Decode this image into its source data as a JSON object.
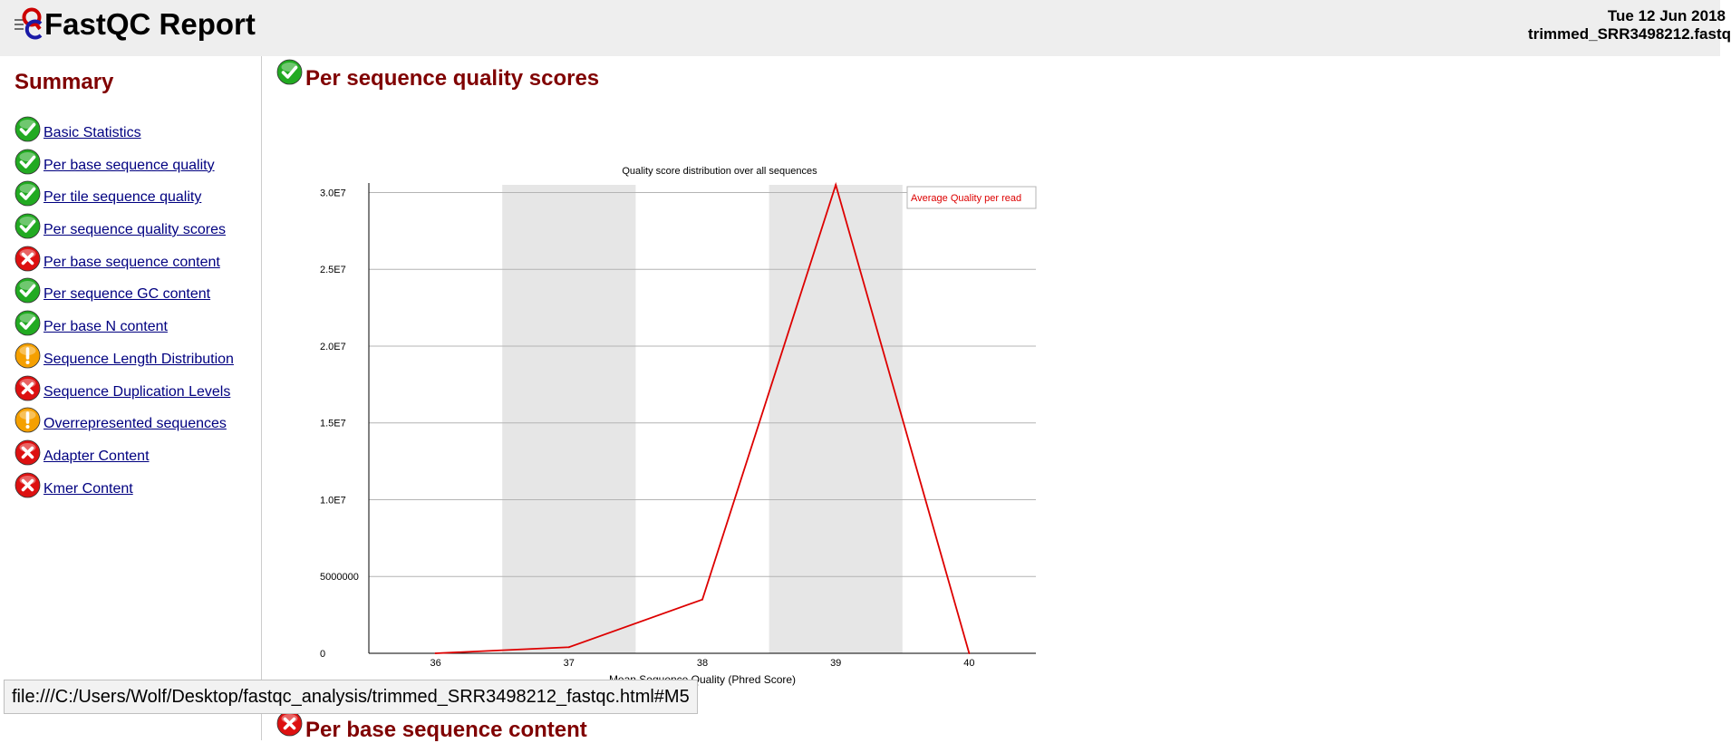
{
  "header": {
    "app_title": "FastQC Report",
    "date": "Tue 12 Jun 2018",
    "filename": "trimmed_SRR3498212.fastq"
  },
  "sidebar": {
    "title": "Summary",
    "items": [
      {
        "label": "Basic Statistics",
        "status": "pass"
      },
      {
        "label": "Per base sequence quality",
        "status": "pass"
      },
      {
        "label": "Per tile sequence quality",
        "status": "pass"
      },
      {
        "label": "Per sequence quality scores",
        "status": "pass"
      },
      {
        "label": "Per base sequence content",
        "status": "fail"
      },
      {
        "label": "Per sequence GC content",
        "status": "pass"
      },
      {
        "label": "Per base N content",
        "status": "pass"
      },
      {
        "label": "Sequence Length Distribution",
        "status": "warn"
      },
      {
        "label": "Sequence Duplication Levels",
        "status": "fail"
      },
      {
        "label": "Overrepresented sequences",
        "status": "warn"
      },
      {
        "label": "Adapter Content",
        "status": "fail"
      },
      {
        "label": "Kmer Content",
        "status": "fail"
      }
    ]
  },
  "main": {
    "section1": {
      "title": "Per sequence quality scores",
      "status": "pass"
    },
    "section2": {
      "title": "Per base sequence content",
      "status": "fail"
    }
  },
  "statusbar": {
    "url": "file:///C:/Users/Wolf/Desktop/fastqc_analysis/trimmed_SRR3498212_fastqc.html#M5"
  },
  "colors": {
    "pass": "#22aa22",
    "fail": "#dd1111",
    "warn": "#f5a000",
    "heading": "#800000",
    "link": "#000080",
    "line": "#dd0000"
  },
  "chart_data": {
    "type": "line",
    "title": "Quality score distribution over all sequences",
    "xlabel": "Mean Sequence Quality (Phred Score)",
    "ylabel": "",
    "x": [
      36,
      37,
      38,
      39,
      40
    ],
    "ylim": [
      0,
      30500000
    ],
    "yticks": [
      0,
      5000000,
      10000000,
      15000000,
      20000000,
      25000000,
      30000000
    ],
    "ytick_labels": [
      "0",
      "5000000",
      "1.0E7",
      "1.5E7",
      "2.0E7",
      "2.5E7",
      "3.0E7"
    ],
    "series": [
      {
        "name": "Average Quality per read",
        "values": [
          0,
          400000,
          3500000,
          30500000,
          0
        ]
      }
    ],
    "shaded_categories": [
      37,
      39
    ],
    "legend_position": "top-right",
    "grid": true
  }
}
